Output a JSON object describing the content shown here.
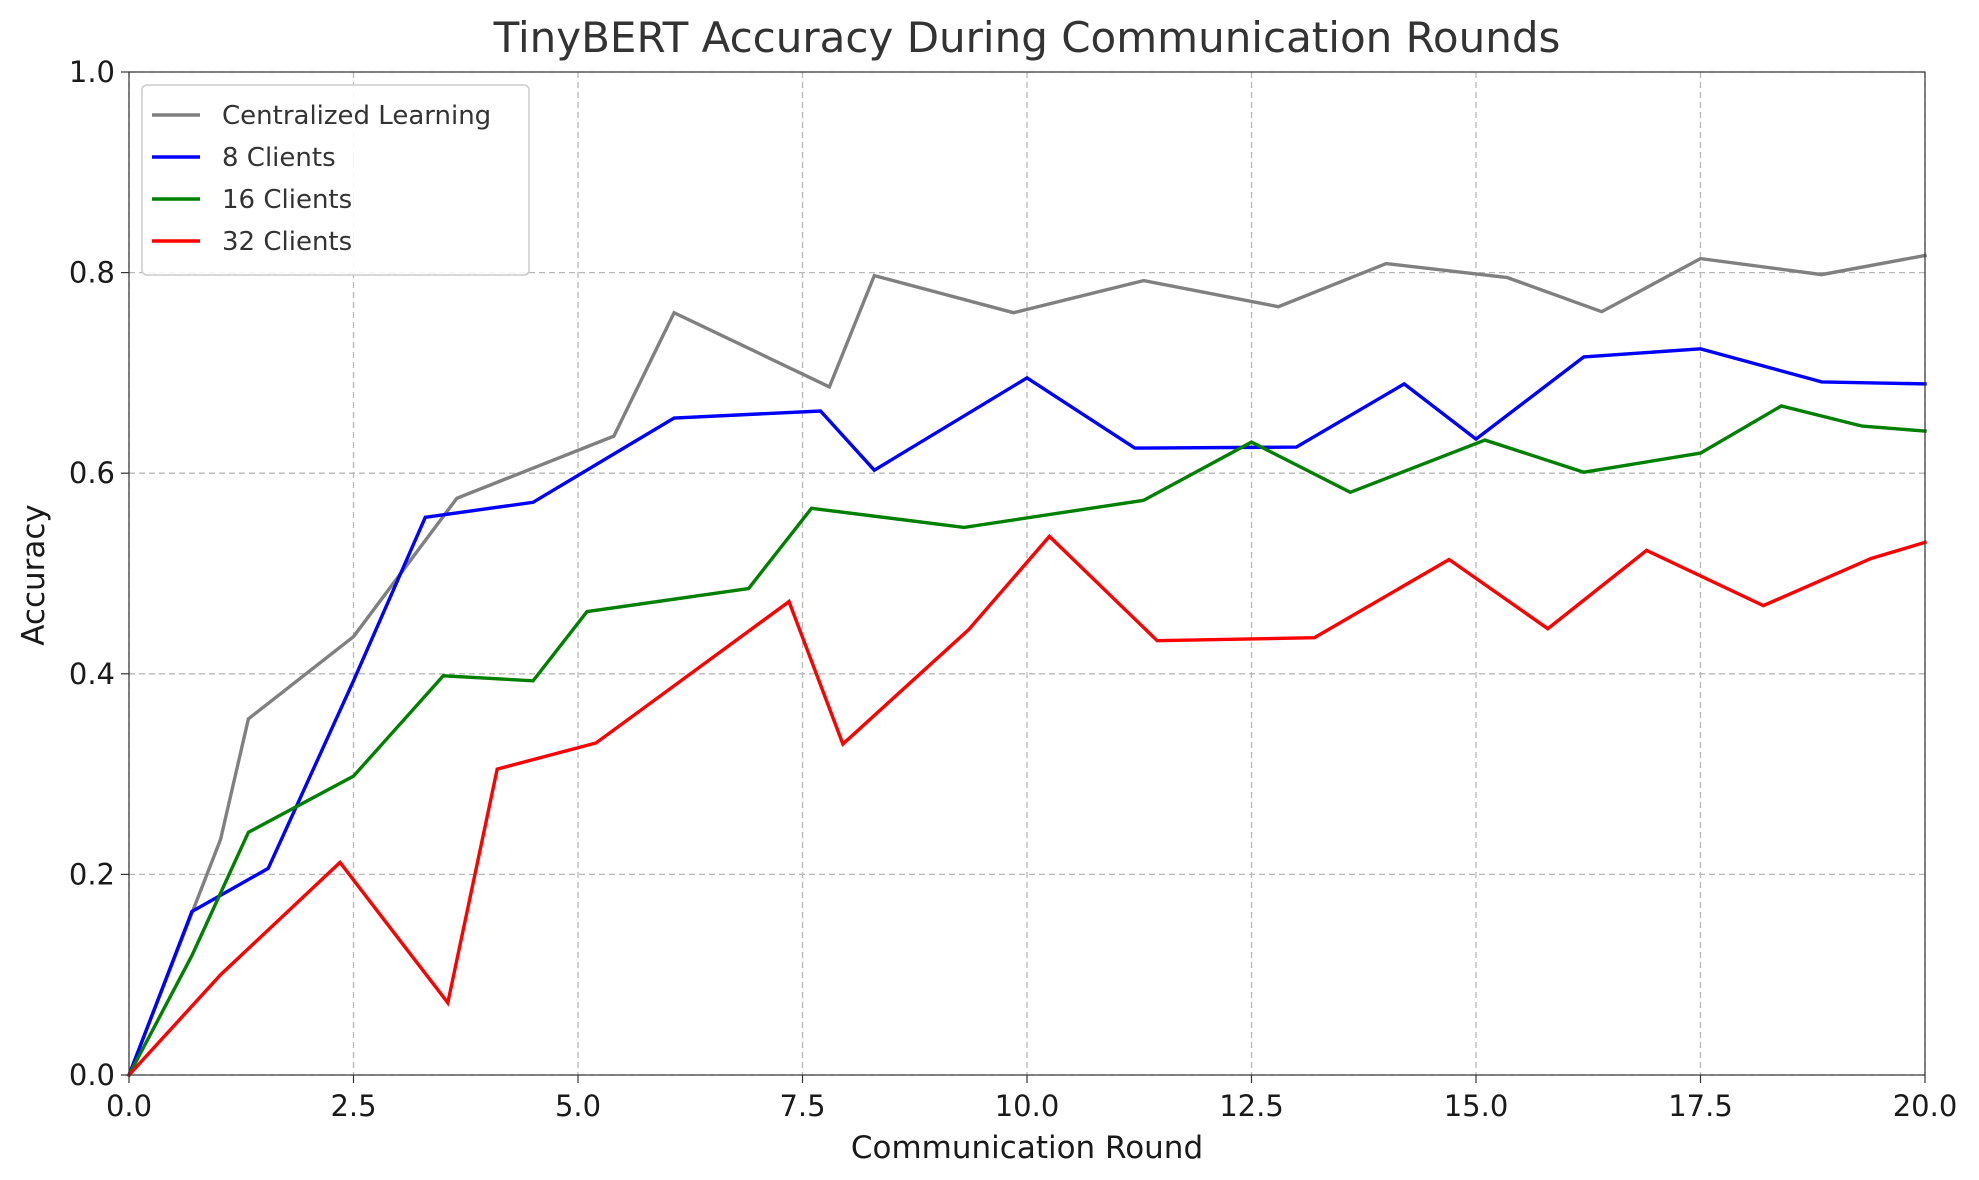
{
  "chart_data": {
    "type": "line",
    "title": "TinyBERT Accuracy During Communication Rounds",
    "xlabel": "Communication Round",
    "ylabel": "Accuracy",
    "xlim": [
      0,
      20
    ],
    "ylim": [
      0,
      1
    ],
    "xticks": [
      0,
      2.5,
      5,
      7.5,
      10,
      12.5,
      15,
      17.5,
      20
    ],
    "xtick_labels": [
      "0.0",
      "2.5",
      "5.0",
      "7.5",
      "10.0",
      "12.5",
      "15.0",
      "17.5",
      "20.0"
    ],
    "yticks": [
      0,
      0.2,
      0.4,
      0.6,
      0.8,
      1.0
    ],
    "ytick_labels": [
      "0.0",
      "0.2",
      "0.4",
      "0.6",
      "0.8",
      "1.0"
    ],
    "grid": true,
    "legend_position": "top-left",
    "series": [
      {
        "name": "Centralized Learning",
        "color": "#808080",
        "x": [
          0,
          1.02,
          1.33,
          2.5,
          3.65,
          5.4,
          6.07,
          7.8,
          8.3,
          9.85,
          11.3,
          12.8,
          14.0,
          15.35,
          16.4,
          17.5,
          18.85,
          20.0
        ],
        "y": [
          0.0,
          0.235,
          0.355,
          0.437,
          0.575,
          0.637,
          0.76,
          0.686,
          0.797,
          0.76,
          0.792,
          0.766,
          0.809,
          0.795,
          0.761,
          0.814,
          0.798,
          0.817
        ]
      },
      {
        "name": "8 Clients",
        "color": "#0000ff",
        "x": [
          0,
          0.7,
          1.55,
          2.5,
          3.3,
          4.5,
          6.07,
          7.7,
          8.3,
          10.0,
          11.2,
          13.0,
          14.2,
          15.0,
          16.2,
          17.5,
          18.85,
          20.0
        ],
        "y": [
          0.0,
          0.163,
          0.206,
          0.393,
          0.556,
          0.571,
          0.655,
          0.662,
          0.603,
          0.695,
          0.625,
          0.626,
          0.689,
          0.634,
          0.716,
          0.724,
          0.691,
          0.689
        ]
      },
      {
        "name": "16 Clients",
        "color": "#008000",
        "x": [
          0,
          0.7,
          1.33,
          2.5,
          3.5,
          4.5,
          5.1,
          6.9,
          7.6,
          9.3,
          11.3,
          12.5,
          13.6,
          15.1,
          16.2,
          17.5,
          18.4,
          19.3,
          20.0
        ],
        "y": [
          0.0,
          0.119,
          0.242,
          0.298,
          0.398,
          0.393,
          0.462,
          0.485,
          0.565,
          0.546,
          0.573,
          0.631,
          0.581,
          0.633,
          0.601,
          0.62,
          0.667,
          0.647,
          0.642
        ]
      },
      {
        "name": "32 Clients",
        "color": "#ff0000",
        "x": [
          0,
          1.02,
          2.35,
          3.55,
          4.1,
          5.2,
          7.35,
          7.95,
          9.35,
          10.25,
          11.45,
          13.2,
          14.7,
          15.8,
          16.9,
          18.2,
          19.4,
          20.0
        ],
        "y": [
          0.0,
          0.1,
          0.212,
          0.072,
          0.305,
          0.331,
          0.472,
          0.33,
          0.444,
          0.537,
          0.433,
          0.436,
          0.514,
          0.445,
          0.523,
          0.468,
          0.515,
          0.531
        ]
      }
    ]
  }
}
